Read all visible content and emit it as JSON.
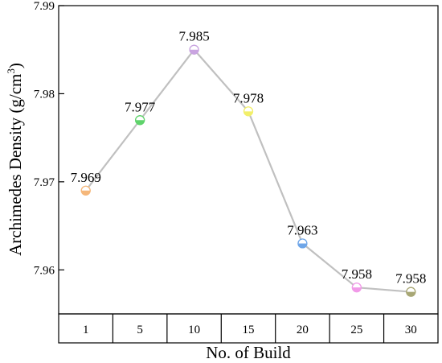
{
  "chart_data": {
    "type": "line",
    "xlabel": "No. of Build",
    "ylabel_main": "Archimedes Density (g/cm",
    "ylabel_sup": "3",
    "ylabel_end": ")",
    "categories": [
      "1",
      "5",
      "10",
      "15",
      "20",
      "25",
      "30"
    ],
    "values": [
      7.969,
      7.977,
      7.985,
      7.978,
      7.963,
      7.958,
      7.9575
    ],
    "data_labels": [
      "7.969",
      "7.977",
      "7.985",
      "7.978",
      "7.963",
      "7.958",
      "7.958"
    ],
    "point_colors": [
      "#f5b77a",
      "#5fd36b",
      "#c9a4e0",
      "#f2ef6a",
      "#6fa6e8",
      "#f19ae8",
      "#a8a775"
    ],
    "line_color": "#c0c0c0",
    "ylim": [
      7.955,
      7.99
    ],
    "yticks": [
      "7.96",
      "7.97",
      "7.98",
      "7.99"
    ],
    "ytick_values": [
      7.96,
      7.97,
      7.98,
      7.99
    ],
    "grid": false,
    "legend": "none"
  }
}
